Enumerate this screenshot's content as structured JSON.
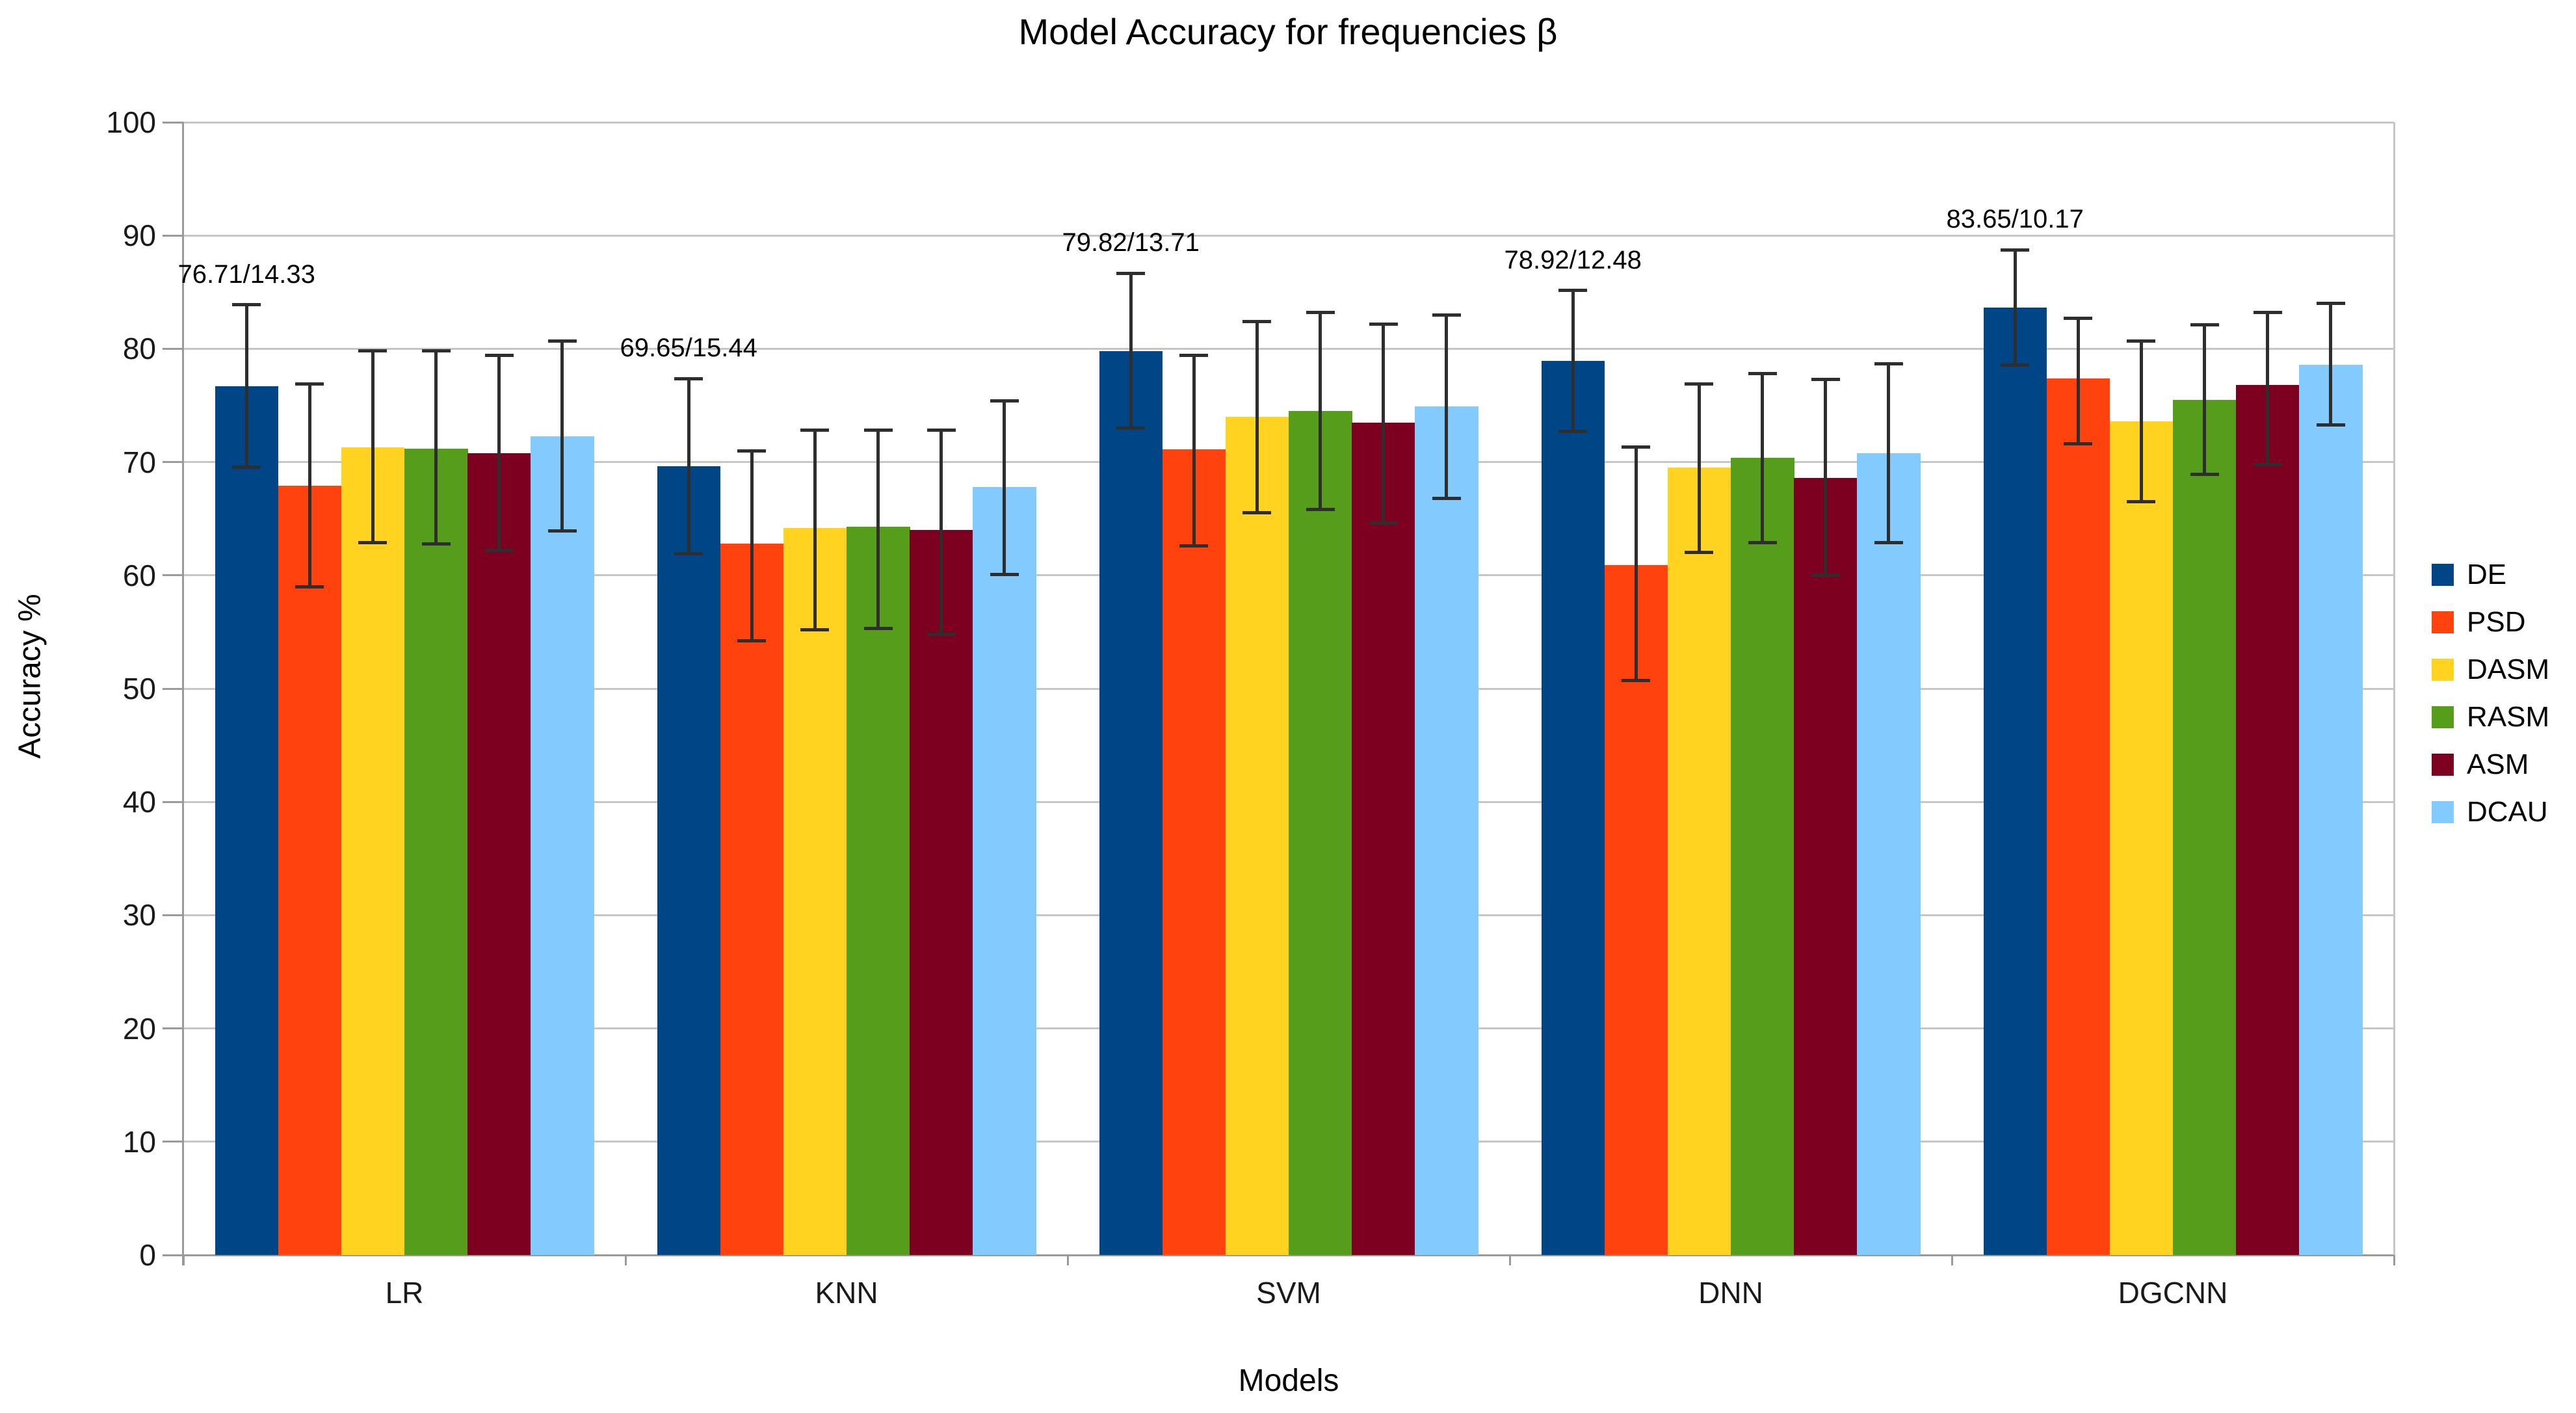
{
  "title": "Model Accuracy for frequencies β",
  "accent_colors": {
    "grid": "#c6c6c6",
    "axis": "#9a9a9a",
    "error_bar": "#2e2e2e"
  },
  "chart_data": {
    "type": "bar",
    "title": "Model Accuracy for frequencies β",
    "xlabel": "Models",
    "ylabel": "Accuracy %",
    "ylim": [
      0,
      100
    ],
    "y_ticks": [
      0,
      10,
      20,
      30,
      40,
      50,
      60,
      70,
      80,
      90,
      100
    ],
    "grid": true,
    "legend_position": "right",
    "error_bars": true,
    "categories": [
      "LR",
      "KNN",
      "SVM",
      "DNN",
      "DGCNN"
    ],
    "series": [
      {
        "name": "DE",
        "color": "#004586",
        "values": [
          76.71,
          69.65,
          79.82,
          78.92,
          83.65
        ],
        "err_low": [
          69.55,
          61.93,
          72.97,
          72.68,
          78.57
        ],
        "err_high": [
          83.88,
          77.37,
          86.68,
          85.16,
          88.74
        ]
      },
      {
        "name": "PSD",
        "color": "#ff420e",
        "values": [
          67.9,
          62.8,
          71.1,
          60.9,
          77.4
        ],
        "err_low": [
          59.0,
          54.2,
          62.6,
          50.7,
          71.6
        ],
        "err_high": [
          76.9,
          71.0,
          79.4,
          71.3,
          82.7
        ]
      },
      {
        "name": "DASM",
        "color": "#ffd320",
        "values": [
          71.3,
          64.2,
          74.0,
          69.5,
          73.6
        ],
        "err_low": [
          62.9,
          55.2,
          65.5,
          62.0,
          66.5
        ],
        "err_high": [
          79.8,
          72.8,
          82.4,
          76.9,
          80.7
        ]
      },
      {
        "name": "RASM",
        "color": "#579d1c",
        "values": [
          71.2,
          64.3,
          74.5,
          70.4,
          75.5
        ],
        "err_low": [
          62.8,
          55.3,
          65.8,
          62.9,
          68.9
        ],
        "err_high": [
          79.8,
          72.8,
          83.2,
          77.8,
          82.1
        ]
      },
      {
        "name": "ASM",
        "color": "#7e0021",
        "values": [
          70.8,
          64.0,
          73.5,
          68.6,
          76.8
        ],
        "err_low": [
          62.2,
          54.8,
          64.6,
          60.0,
          69.8
        ],
        "err_high": [
          79.4,
          72.8,
          82.2,
          77.3,
          83.2
        ]
      },
      {
        "name": "DCAU",
        "color": "#83caff",
        "values": [
          72.3,
          67.8,
          74.9,
          70.8,
          78.6
        ],
        "err_low": [
          63.9,
          60.1,
          66.8,
          62.9,
          73.3
        ],
        "err_high": [
          80.7,
          75.4,
          83.0,
          78.7,
          84.0
        ]
      }
    ],
    "annotations": [
      {
        "category": "LR",
        "series": "DE",
        "text": "76.71/14.33"
      },
      {
        "category": "KNN",
        "series": "DE",
        "text": "69.65/15.44"
      },
      {
        "category": "SVM",
        "series": "DE",
        "text": "79.82/13.71"
      },
      {
        "category": "DNN",
        "series": "DE",
        "text": "78.92/12.48"
      },
      {
        "category": "DGCNN",
        "series": "DE",
        "text": "83.65/10.17"
      }
    ],
    "legend": [
      "DE",
      "PSD",
      "DASM",
      "RASM",
      "ASM",
      "DCAU"
    ]
  }
}
